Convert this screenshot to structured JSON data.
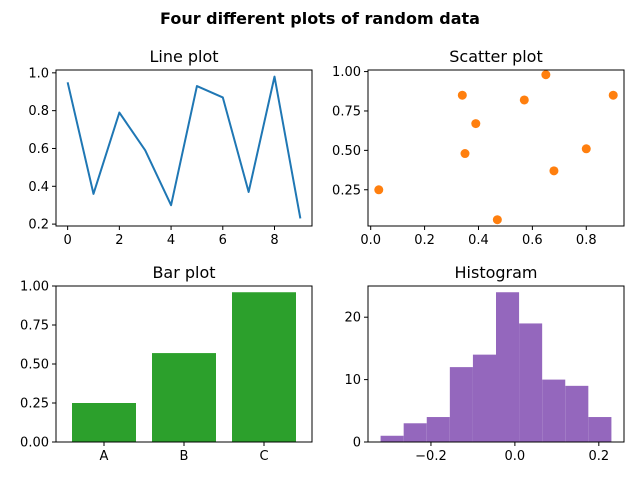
{
  "figure": {
    "suptitle": "Four different plots of random data"
  },
  "chart_data": [
    {
      "type": "line",
      "title": "Line plot",
      "x": [
        0,
        1,
        2,
        3,
        4,
        5,
        6,
        7,
        8,
        9
      ],
      "y": [
        0.95,
        0.36,
        0.79,
        0.59,
        0.3,
        0.93,
        0.87,
        0.37,
        0.98,
        0.23
      ],
      "xlim": [
        -0.45,
        9.45
      ],
      "ylim": [
        0.19,
        1.015
      ],
      "xticks": [
        0,
        2,
        4,
        6,
        8
      ],
      "yticks": [
        0.2,
        0.4,
        0.6,
        0.8,
        1.0
      ],
      "ytick_labels": [
        "0.2",
        "0.4",
        "0.6",
        "0.8",
        "1.0"
      ],
      "xlabel": "",
      "ylabel": "",
      "grid": false,
      "color": "#1f77b4"
    },
    {
      "type": "scatter",
      "title": "Scatter plot",
      "points": [
        {
          "x": 0.03,
          "y": 0.25
        },
        {
          "x": 0.34,
          "y": 0.85
        },
        {
          "x": 0.35,
          "y": 0.48
        },
        {
          "x": 0.39,
          "y": 0.67
        },
        {
          "x": 0.47,
          "y": 0.06
        },
        {
          "x": 0.57,
          "y": 0.82
        },
        {
          "x": 0.65,
          "y": 0.98
        },
        {
          "x": 0.68,
          "y": 0.37
        },
        {
          "x": 0.8,
          "y": 0.51
        },
        {
          "x": 0.9,
          "y": 0.85
        }
      ],
      "xlim": [
        -0.01,
        0.94
      ],
      "ylim": [
        0.02,
        1.01
      ],
      "xticks": [
        0.0,
        0.2,
        0.4,
        0.6,
        0.8
      ],
      "xtick_labels": [
        "0.0",
        "0.2",
        "0.4",
        "0.6",
        "0.8"
      ],
      "yticks": [
        0.25,
        0.5,
        0.75,
        1.0
      ],
      "ytick_labels": [
        "0.25",
        "0.50",
        "0.75",
        "1.00"
      ],
      "xlabel": "",
      "ylabel": "",
      "grid": false,
      "color": "#ff7f0e"
    },
    {
      "type": "bar",
      "title": "Bar plot",
      "categories": [
        "A",
        "B",
        "C"
      ],
      "values": [
        0.25,
        0.57,
        0.96
      ],
      "ylim": [
        0,
        1.0
      ],
      "yticks": [
        0.0,
        0.25,
        0.5,
        0.75,
        1.0
      ],
      "ytick_labels": [
        "0.00",
        "0.25",
        "0.50",
        "0.75",
        "1.00"
      ],
      "xlabel": "",
      "ylabel": "",
      "grid": false,
      "color": "#2ca02c"
    },
    {
      "type": "bar",
      "subtype": "histogram",
      "title": "Histogram",
      "bin_edges": [
        -0.32,
        -0.265,
        -0.21,
        -0.155,
        -0.1,
        -0.045,
        0.01,
        0.065,
        0.12,
        0.175,
        0.23
      ],
      "counts": [
        1,
        3,
        4,
        12,
        14,
        24,
        19,
        10,
        9,
        4
      ],
      "xlim": [
        -0.35,
        0.26
      ],
      "ylim": [
        0,
        25
      ],
      "xticks": [
        -0.2,
        0.0,
        0.2
      ],
      "xtick_labels": [
        "−0.2",
        "0.0",
        "0.2"
      ],
      "yticks": [
        0,
        10,
        20
      ],
      "ytick_labels": [
        "0",
        "10",
        "20"
      ],
      "xlabel": "",
      "ylabel": "",
      "grid": false,
      "color": "#9467bd"
    }
  ]
}
